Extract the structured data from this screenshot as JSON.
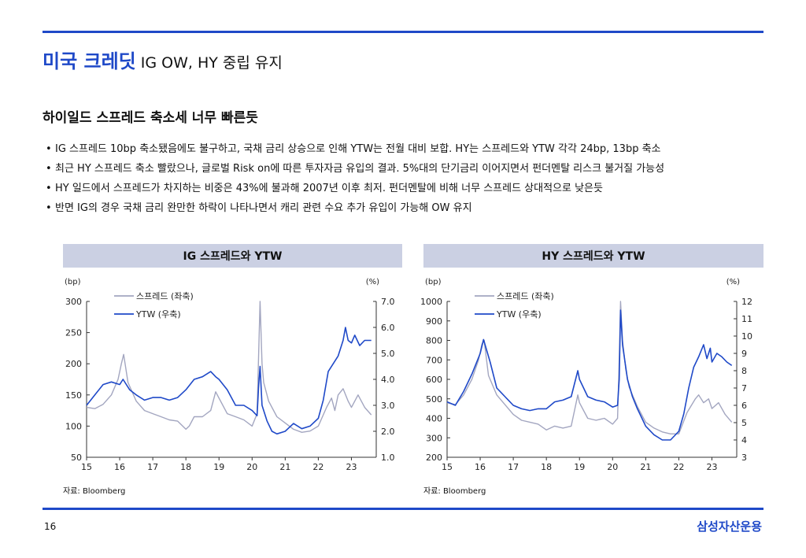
{
  "header": {
    "title_main": "미국 크레딧",
    "title_sub": "IG OW, HY 중립 유지"
  },
  "section_title": "하이일드 스프레드 축소세 너무 빠른듯",
  "bullets": [
    "IG 스프레드 10bp 축소됐음에도 불구하고, 국채 금리 상승으로 인해 YTW는 전월 대비 보합. HY는 스프레드와 YTW 각각 24bp, 13bp 축소",
    "최근 HY 스프레드 축소 빨랐으나, 글로벌 Risk on에 따른 투자자금 유입의 결과. 5%대의 단기금리 이어지면서 펀더멘탈 리스크 불거질 가능성",
    "HY 일드에서 스프레드가 차지하는 비중은 43%에 불과해 2007년 이후 최저. 펀더멘탈에 비해 너무 스프레드 상대적으로 낮은듯",
    "반면 IG의 경우 국채 금리 완만한 하락이 나타나면서 캐리 관련 수요 추가 유입이 가능해 OW 유지"
  ],
  "footer": {
    "page": "16",
    "brand": "삼성자산운용"
  },
  "colors": {
    "accent": "#1f49c8",
    "spread": "#a3a6c0",
    "ytw": "#1f49c8",
    "panel_bg": "#cbd0e3"
  },
  "chart_data": [
    {
      "type": "line",
      "title": "IG 스프레드와 YTW",
      "source": "자료: Bloomberg",
      "left_unit": "(bp)",
      "right_unit": "(%)",
      "x_ticks": [
        "15",
        "16",
        "17",
        "18",
        "19",
        "20",
        "21",
        "22",
        "23"
      ],
      "xlim": [
        2015.0,
        2023.75
      ],
      "ylim_left": [
        50,
        300
      ],
      "yticks_left": [
        "50",
        "100",
        "150",
        "200",
        "250",
        "300"
      ],
      "ylim_right": [
        1.0,
        7.0
      ],
      "yticks_right": [
        "1.0",
        "2.0",
        "3.0",
        "4.0",
        "5.0",
        "6.0",
        "7.0"
      ],
      "legend_position": "top-left",
      "series": [
        {
          "name": "스프레드 (좌축)",
          "axis": "left",
          "color": "#a3a6c0",
          "x": [
            2015.0,
            2015.25,
            2015.5,
            2015.75,
            2015.95,
            2016.05,
            2016.12,
            2016.25,
            2016.5,
            2016.75,
            2017.0,
            2017.25,
            2017.5,
            2017.75,
            2018.0,
            2018.1,
            2018.25,
            2018.5,
            2018.75,
            2018.9,
            2019.0,
            2019.25,
            2019.5,
            2019.75,
            2020.0,
            2020.15,
            2020.2,
            2020.24,
            2020.3,
            2020.35,
            2020.5,
            2020.75,
            2021.0,
            2021.25,
            2021.5,
            2021.75,
            2022.0,
            2022.25,
            2022.4,
            2022.5,
            2022.6,
            2022.75,
            2022.9,
            2023.0,
            2023.2,
            2023.4,
            2023.6
          ],
          "values": [
            130,
            128,
            135,
            150,
            175,
            200,
            215,
            170,
            140,
            125,
            120,
            115,
            110,
            108,
            95,
            100,
            115,
            115,
            125,
            155,
            145,
            120,
            115,
            110,
            100,
            120,
            220,
            300,
            200,
            170,
            140,
            115,
            105,
            95,
            90,
            92,
            100,
            130,
            145,
            125,
            150,
            160,
            140,
            130,
            150,
            130,
            118
          ]
        },
        {
          "name": "YTW (우축)",
          "axis": "right",
          "color": "#1f49c8",
          "x": [
            2015.0,
            2015.25,
            2015.5,
            2015.75,
            2016.0,
            2016.1,
            2016.3,
            2016.5,
            2016.75,
            2017.0,
            2017.25,
            2017.5,
            2017.75,
            2018.0,
            2018.25,
            2018.5,
            2018.75,
            2018.9,
            2019.0,
            2019.25,
            2019.5,
            2019.75,
            2020.0,
            2020.15,
            2020.2,
            2020.24,
            2020.3,
            2020.45,
            2020.6,
            2020.75,
            2021.0,
            2021.25,
            2021.5,
            2021.75,
            2022.0,
            2022.15,
            2022.3,
            2022.45,
            2022.6,
            2022.75,
            2022.82,
            2022.9,
            2023.0,
            2023.1,
            2023.25,
            2023.4,
            2023.6
          ],
          "values": [
            3.0,
            3.4,
            3.8,
            3.9,
            3.8,
            4.0,
            3.6,
            3.4,
            3.2,
            3.3,
            3.3,
            3.2,
            3.3,
            3.6,
            4.0,
            4.1,
            4.3,
            4.1,
            4.0,
            3.6,
            3.0,
            3.0,
            2.8,
            2.6,
            3.8,
            4.5,
            3.0,
            2.4,
            2.0,
            1.9,
            2.0,
            2.3,
            2.1,
            2.2,
            2.5,
            3.2,
            4.3,
            4.6,
            4.9,
            5.5,
            6.0,
            5.5,
            5.4,
            5.7,
            5.3,
            5.5,
            5.5
          ]
        }
      ]
    },
    {
      "type": "line",
      "title": "HY 스프레드와 YTW",
      "source": "자료: Bloomberg",
      "left_unit": "(bp)",
      "right_unit": "(%)",
      "x_ticks": [
        "15",
        "16",
        "17",
        "18",
        "19",
        "20",
        "21",
        "22",
        "23"
      ],
      "xlim": [
        2015.0,
        2023.75
      ],
      "ylim_left": [
        200,
        1000
      ],
      "yticks_left": [
        "200",
        "300",
        "400",
        "500",
        "600",
        "700",
        "800",
        "900",
        "1000"
      ],
      "ylim_right": [
        3,
        12
      ],
      "yticks_right": [
        "3",
        "4",
        "5",
        "6",
        "7",
        "8",
        "9",
        "10",
        "11",
        "12"
      ],
      "legend_position": "top-left",
      "series": [
        {
          "name": "스프레드 (좌축)",
          "axis": "left",
          "color": "#a3a6c0",
          "x": [
            2015.0,
            2015.25,
            2015.5,
            2015.75,
            2015.95,
            2016.05,
            2016.12,
            2016.25,
            2016.5,
            2016.75,
            2017.0,
            2017.25,
            2017.5,
            2017.75,
            2018.0,
            2018.25,
            2018.5,
            2018.75,
            2018.95,
            2019.0,
            2019.25,
            2019.5,
            2019.75,
            2020.0,
            2020.15,
            2020.2,
            2020.24,
            2020.3,
            2020.4,
            2020.5,
            2020.75,
            2021.0,
            2021.25,
            2021.5,
            2021.75,
            2022.0,
            2022.25,
            2022.5,
            2022.6,
            2022.75,
            2022.9,
            2023.0,
            2023.2,
            2023.4,
            2023.6
          ],
          "values": [
            480,
            470,
            520,
            600,
            700,
            780,
            800,
            620,
            520,
            470,
            420,
            390,
            380,
            370,
            340,
            360,
            350,
            360,
            520,
            480,
            400,
            390,
            400,
            370,
            400,
            700,
            1000,
            800,
            650,
            560,
            460,
            380,
            350,
            330,
            320,
            320,
            430,
            500,
            520,
            480,
            500,
            450,
            480,
            420,
            380
          ]
        },
        {
          "name": "YTW (우축)",
          "axis": "right",
          "color": "#1f49c8",
          "x": [
            2015.0,
            2015.25,
            2015.5,
            2015.75,
            2016.0,
            2016.1,
            2016.3,
            2016.5,
            2016.75,
            2017.0,
            2017.25,
            2017.5,
            2017.75,
            2018.0,
            2018.25,
            2018.5,
            2018.75,
            2018.95,
            2019.0,
            2019.25,
            2019.5,
            2019.75,
            2020.0,
            2020.15,
            2020.2,
            2020.24,
            2020.3,
            2020.45,
            2020.6,
            2020.75,
            2021.0,
            2021.25,
            2021.5,
            2021.75,
            2022.0,
            2022.15,
            2022.3,
            2022.45,
            2022.6,
            2022.75,
            2022.85,
            2022.95,
            2023.0,
            2023.15,
            2023.3,
            2023.45,
            2023.6
          ],
          "values": [
            6.2,
            6.0,
            6.8,
            7.8,
            9.0,
            9.8,
            8.5,
            7.0,
            6.5,
            6.0,
            5.8,
            5.7,
            5.8,
            5.8,
            6.2,
            6.3,
            6.5,
            8.0,
            7.5,
            6.5,
            6.3,
            6.2,
            5.9,
            6.0,
            7.5,
            11.5,
            9.5,
            7.5,
            6.5,
            5.8,
            4.8,
            4.3,
            4.0,
            4.0,
            4.5,
            5.5,
            7.0,
            8.2,
            8.8,
            9.5,
            8.7,
            9.3,
            8.5,
            9.0,
            8.8,
            8.5,
            8.3
          ]
        }
      ]
    }
  ]
}
